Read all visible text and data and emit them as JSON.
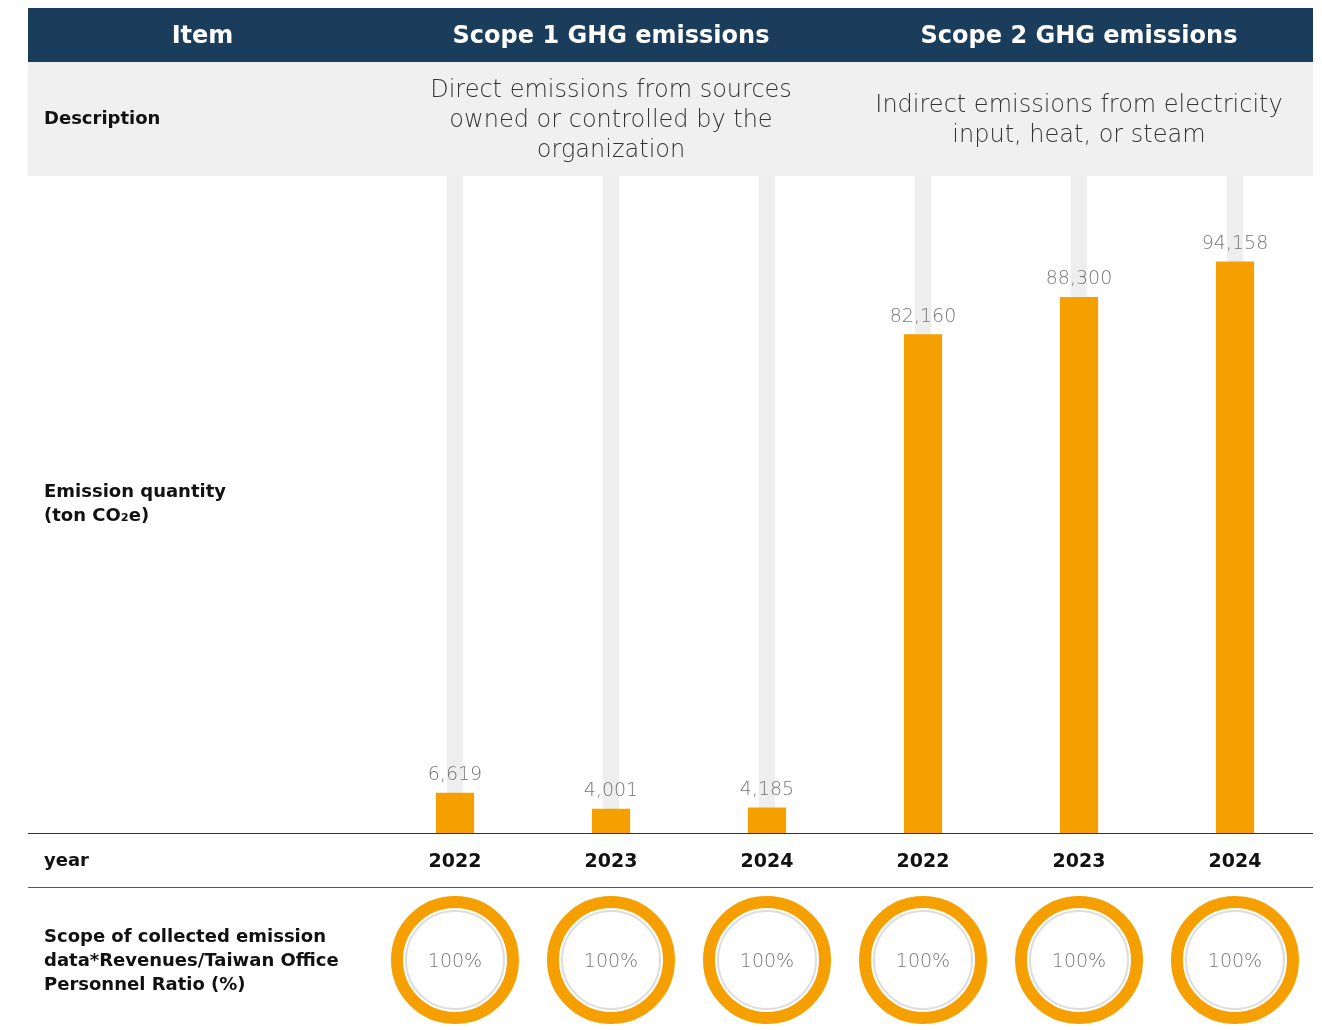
{
  "chart_data": {
    "type": "bar",
    "categories": [
      "2022",
      "2023",
      "2024",
      "2022",
      "2023",
      "2024"
    ],
    "values": [
      6619,
      4001,
      4185,
      82160,
      88300,
      94158
    ],
    "value_labels": [
      "6,619",
      "4,001",
      "4,185",
      "82,160",
      "88,300",
      "94,158"
    ],
    "color": "#f5a000",
    "grid": false,
    "legend": false,
    "tick_labels": "x",
    "annotations": [
      "Item",
      "Scope 1 GHG emissions",
      "Scope 2 GHG emissions",
      "Description",
      "Direct emissions from sources owned or controlled by the organization",
      "Indirect emissions from electricity input, heat, or steam",
      "Emission quantity (ton CO₂e)",
      "year",
      "Scope of collected emission data*Revenues/Taiwan Office Personnel Ratio (%)",
      "100%",
      "100%",
      "100%",
      "100%",
      "100%",
      "100%"
    ]
  }
}
